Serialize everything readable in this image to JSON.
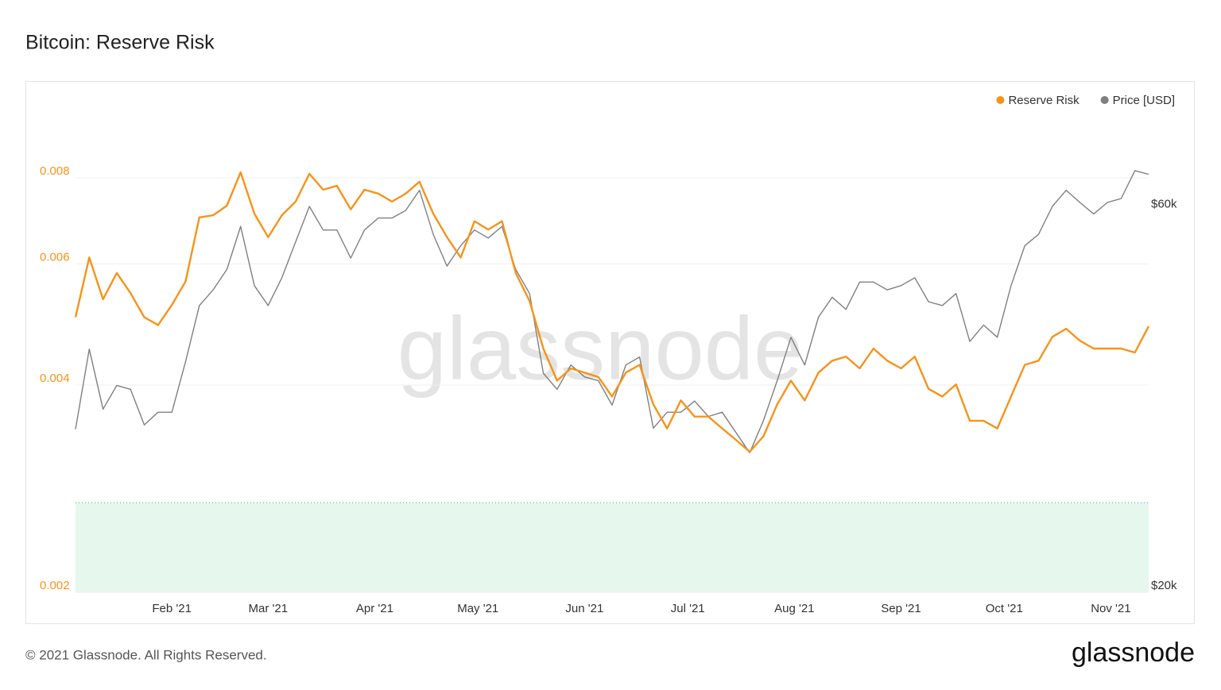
{
  "chart_data": {
    "type": "line",
    "title": "Bitcoin: Reserve Risk",
    "watermark": "glassnode",
    "footer": "© 2021 Glassnode. All Rights Reserved.",
    "brand": "glassnode",
    "x": [
      0,
      4,
      8,
      12,
      16,
      20,
      24,
      28,
      32,
      36,
      40,
      44,
      48,
      52,
      56,
      60,
      64,
      68,
      72,
      76,
      80,
      84,
      88,
      92,
      96,
      100,
      104,
      108,
      112,
      116,
      120,
      124,
      128,
      132,
      136,
      140,
      144,
      148,
      152,
      156,
      160,
      164,
      168,
      172,
      176,
      180,
      184,
      188,
      192,
      196,
      200,
      204,
      208,
      212,
      216,
      220,
      224,
      228,
      232,
      236,
      240,
      244,
      248,
      252,
      256,
      260,
      264,
      268,
      272,
      276,
      280,
      284,
      288,
      292,
      296,
      300,
      304,
      308,
      312
    ],
    "xlim": [
      0,
      312
    ],
    "xticks": [
      {
        "value": 28,
        "label": "Feb '21"
      },
      {
        "value": 56,
        "label": "Mar '21"
      },
      {
        "value": 87,
        "label": "Apr '21"
      },
      {
        "value": 117,
        "label": "May '21"
      },
      {
        "value": 148,
        "label": "Jun '21"
      },
      {
        "value": 178,
        "label": "Jul '21"
      },
      {
        "value": 209,
        "label": "Aug '21"
      },
      {
        "value": 240,
        "label": "Sep '21"
      },
      {
        "value": 270,
        "label": "Oct '21"
      },
      {
        "value": 301,
        "label": "Nov '21"
      }
    ],
    "ylim": [
      0.002,
      0.01
    ],
    "ylog": true,
    "yticks": [
      0.002,
      0.004,
      0.006,
      0.008
    ],
    "y2lim": [
      20000,
      80000
    ],
    "y2log": true,
    "y2ticks": [
      {
        "value": 20000,
        "label": "$20k"
      },
      {
        "value": 60000,
        "label": "$60k"
      }
    ],
    "grid": true,
    "legend": "top-right",
    "zone": {
      "from": 0.002,
      "to": 0.0027,
      "color": "#e6f7ee",
      "edge": "#4cc38a"
    },
    "series": [
      {
        "name": "Reserve Risk",
        "color": "#f7931a",
        "axis": "y",
        "values": [
          0.00502,
          0.00613,
          0.00533,
          0.00582,
          0.00544,
          0.00502,
          0.00489,
          0.00523,
          0.00566,
          0.00701,
          0.00706,
          0.00729,
          0.00815,
          0.0071,
          0.00656,
          0.00706,
          0.00739,
          0.00811,
          0.00769,
          0.00779,
          0.0072,
          0.00769,
          0.00759,
          0.00739,
          0.00759,
          0.0079,
          0.0071,
          0.00656,
          0.00613,
          0.00692,
          0.00673,
          0.00692,
          0.00582,
          0.0053,
          0.00452,
          0.00406,
          0.00423,
          0.00417,
          0.00411,
          0.00385,
          0.00417,
          0.00428,
          0.00375,
          0.00346,
          0.0038,
          0.0036,
          0.0036,
          0.00346,
          0.00333,
          0.0032,
          0.00337,
          0.00375,
          0.00406,
          0.0038,
          0.00417,
          0.00434,
          0.0044,
          0.00423,
          0.00452,
          0.00434,
          0.00423,
          0.0044,
          0.00395,
          0.00385,
          0.00401,
          0.00355,
          0.00355,
          0.00346,
          0.00385,
          0.00428,
          0.00434,
          0.0047,
          0.00483,
          0.00464,
          0.00452,
          0.00452,
          0.00452,
          0.00446,
          0.00487
        ]
      },
      {
        "name": "Price [USD]",
        "color": "#808080",
        "axis": "y2",
        "values": [
          32000,
          40300,
          33900,
          36300,
          35900,
          32400,
          33600,
          33600,
          38900,
          45700,
          47800,
          50700,
          57400,
          48400,
          45700,
          49500,
          54900,
          60800,
          56800,
          56800,
          52400,
          56800,
          58800,
          58800,
          60100,
          63700,
          56100,
          51200,
          54300,
          56800,
          55500,
          57400,
          50700,
          47300,
          37600,
          35900,
          38500,
          37200,
          36800,
          34300,
          38500,
          39400,
          32100,
          33600,
          33600,
          34700,
          33200,
          33600,
          31700,
          29900,
          32800,
          36800,
          41700,
          38500,
          44200,
          46800,
          45200,
          48900,
          48900,
          47800,
          48400,
          49500,
          46200,
          45700,
          47300,
          41200,
          43200,
          41700,
          48400,
          54300,
          56100,
          60800,
          63700,
          61500,
          59500,
          61500,
          62200,
          67400,
          66700
        ]
      }
    ]
  }
}
